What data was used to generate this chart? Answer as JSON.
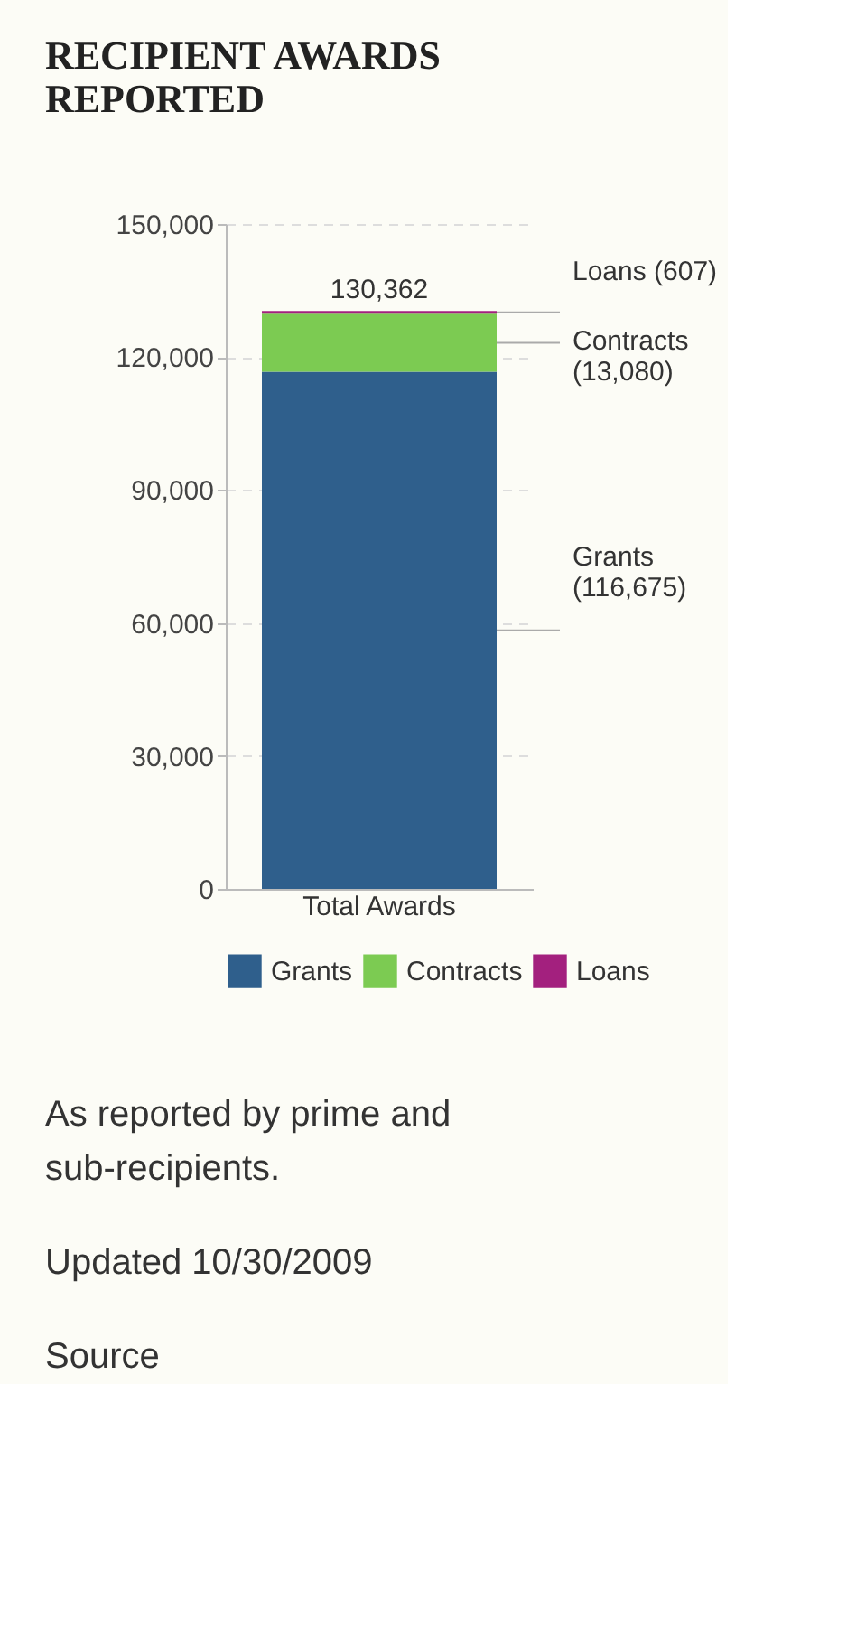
{
  "chart_data": {
    "type": "bar",
    "title": "RECIPIENT AWARDS REPORTED",
    "categories": [
      "Total Awards"
    ],
    "stacked": true,
    "series": [
      {
        "name": "Grants",
        "color": "#2f5f8c",
        "values": [
          116675
        ],
        "value_labels": [
          "Grants (116,675)"
        ]
      },
      {
        "name": "Contracts",
        "color": "#7ccb52",
        "values": [
          13080
        ],
        "value_labels": [
          "Contracts (13,080)"
        ]
      },
      {
        "name": "Loans",
        "color": "#a3207e",
        "values": [
          607
        ],
        "value_labels": [
          "Loans (607)"
        ]
      }
    ],
    "totals": [
      "130,362"
    ],
    "ylim": [
      0,
      150000
    ],
    "yticks": [
      {
        "value": 0,
        "label": "0"
      },
      {
        "value": 30000,
        "label": "30,000"
      },
      {
        "value": 60000,
        "label": "60,000"
      },
      {
        "value": 90000,
        "label": "90,000"
      },
      {
        "value": 120000,
        "label": "120,000"
      },
      {
        "value": 150000,
        "label": "150,000"
      }
    ],
    "grid": "y",
    "legend": "bottom",
    "annotations": [
      "As reported by prime and sub-recipients.",
      "Updated 10/30/2009",
      "Source"
    ]
  }
}
